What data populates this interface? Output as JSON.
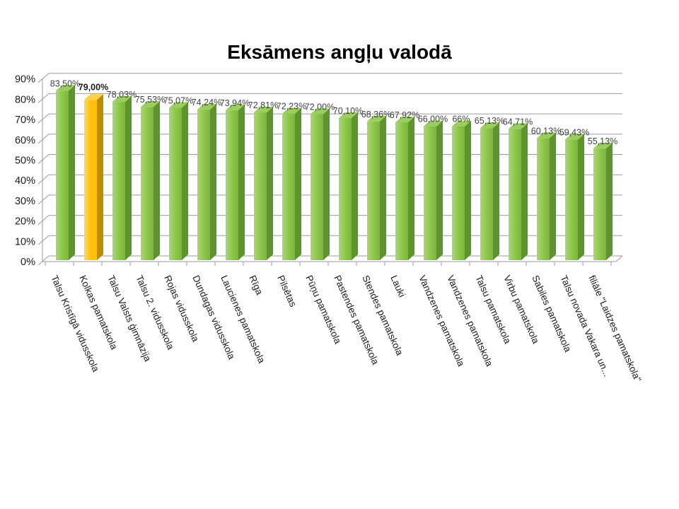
{
  "page": {
    "background_color": "#ffffff"
  },
  "chart_data": {
    "type": "bar",
    "style": "3d-column",
    "title": "Eksāmens angļu valodā",
    "xlabel": "",
    "ylabel": "",
    "categories": [
      "Talsu Kristīgā vidusskola",
      "Kolkas pamatskola",
      "Talsu Valsts ģimnāzija",
      "Talsu 2. vidusskola",
      "Rojas vidusskola",
      "Dundagas vidusskola",
      "Laucienes pamatskola",
      "Rīga",
      "Pilsētas",
      "Pūņu pamatskola",
      "Pastendes pamatskola",
      "Stendes pamatskola",
      "Lauki",
      "Vandzenes pamatskola",
      "Vandzenes pamatskola",
      "Talsu pamatskola",
      "Virbu pamatskola",
      "Sabiles pamatskola",
      "Talsu novada Vakara un...",
      "filiāle \"Laidzes pamatskola\""
    ],
    "values": [
      83.5,
      79.0,
      78.03,
      75.53,
      75.07,
      74.24,
      73.94,
      72.81,
      72.23,
      72.0,
      70.1,
      68.36,
      67.92,
      66.0,
      66,
      65.13,
      64.71,
      60.13,
      59.43,
      55.13
    ],
    "value_labels": [
      "83,50%",
      "79,00%",
      "78,03%",
      "75,53%",
      "75,07%",
      "74,24%",
      "73,94%",
      "72,81%",
      "72,23%",
      "72,00%",
      "70,10%",
      "68,36%",
      "67,92%",
      "66,00%",
      "66%",
      "65,13%",
      "64,71%",
      "60,13%",
      "59,43%",
      "55,13%"
    ],
    "highlight_index": 1,
    "highlight_category": "Kolkas pamatskola",
    "ylim": [
      0,
      90
    ],
    "y_tick_step": 10,
    "y_tick_labels": [
      "0%",
      "10%",
      "20%",
      "30%",
      "40%",
      "50%",
      "60%",
      "70%",
      "80%",
      "90%"
    ],
    "grid": true,
    "legend": false,
    "colors": {
      "bar_front": "#8cc44a",
      "bar_front_light": "#a6d96c",
      "bar_front_dark": "#7cb63d",
      "bar_side": "#5e9430",
      "bar_top": "#9bcd60",
      "highlight_front": "#fdbf0a",
      "highlight_front_light": "#ffd95e",
      "highlight_side": "#bb8b00",
      "highlight_top": "#fdd04a",
      "gridline": "#9b9b9b",
      "axis": "#9b9b9b"
    }
  }
}
